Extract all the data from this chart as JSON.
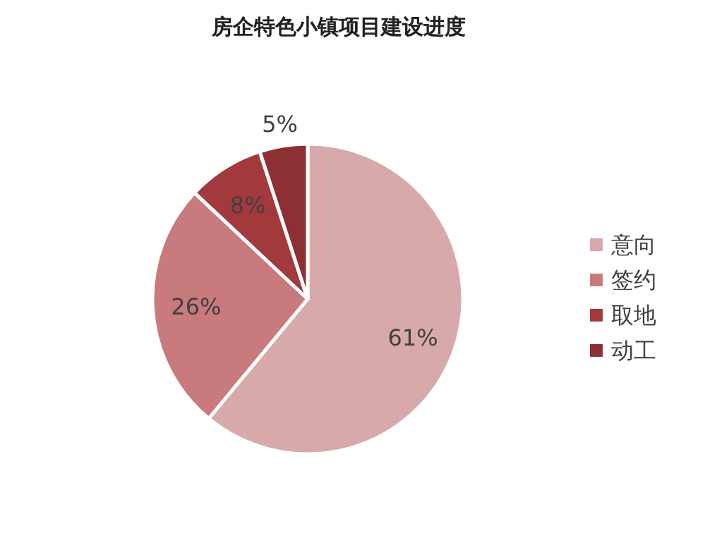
{
  "chart_data": {
    "type": "pie",
    "title": "房企特色小镇项目建设进度",
    "categories": [
      "意向",
      "签约",
      "取地",
      "动工"
    ],
    "values": [
      61,
      26,
      8,
      5
    ],
    "colors": [
      "#d8a9aa",
      "#c97a7d",
      "#a2393d",
      "#8c3034"
    ],
    "value_labels": [
      "61%",
      "26%",
      "8%",
      "5%"
    ],
    "legend": "right"
  }
}
